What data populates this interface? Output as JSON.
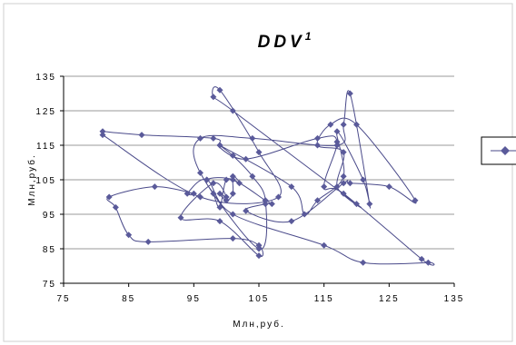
{
  "chart_data": {
    "type": "scatter",
    "title_main": "DDV",
    "title_superscript": "1",
    "xlabel": "Млн,руб.",
    "ylabel": "Млн,руб.",
    "xlim": [
      75,
      135
    ],
    "ylim": [
      75,
      135
    ],
    "xticks": [
      "75",
      "85",
      "95",
      "105",
      "115",
      "125",
      "135"
    ],
    "yticks": [
      "75",
      "85",
      "95",
      "105",
      "115",
      "125",
      "135"
    ],
    "grid": "horizontal",
    "legend_position": "right",
    "point_color": "#5a5a9a",
    "line_color": "#4a4a8a",
    "series": [
      {
        "marker": "diamond",
        "connected": "smoothed-line",
        "points": [
          [
            81,
            119
          ],
          [
            87,
            118
          ],
          [
            98,
            117
          ],
          [
            99,
            115
          ],
          [
            101,
            112
          ],
          [
            104,
            106
          ],
          [
            106,
            99
          ],
          [
            105,
            85
          ],
          [
            96,
            107
          ],
          [
            96,
            117
          ],
          [
            104,
            117
          ],
          [
            117,
            115
          ],
          [
            118,
            121
          ],
          [
            119,
            130
          ],
          [
            122,
            98
          ],
          [
            121,
            105
          ],
          [
            117,
            119
          ],
          [
            118,
            106
          ],
          [
            114,
            99
          ],
          [
            112,
            95
          ],
          [
            110,
            103
          ],
          [
            99,
            115
          ],
          [
            103,
            111
          ],
          [
            114,
            117
          ],
          [
            117,
            116
          ],
          [
            115,
            103
          ],
          [
            118,
            101
          ],
          [
            130,
            82
          ],
          [
            131,
            81
          ],
          [
            121,
            81
          ],
          [
            115,
            86
          ],
          [
            101,
            95
          ],
          [
            97,
            105
          ],
          [
            94,
            101
          ],
          [
            95,
            101
          ],
          [
            89,
            103
          ],
          [
            82,
            100
          ],
          [
            83,
            97
          ],
          [
            85,
            89
          ],
          [
            88,
            87
          ],
          [
            101,
            88
          ],
          [
            105,
            86
          ],
          [
            105,
            83
          ],
          [
            99,
            93
          ],
          [
            93,
            94
          ],
          [
            98,
            104
          ],
          [
            100,
            100
          ],
          [
            99,
            101
          ],
          [
            100,
            99
          ],
          [
            101,
            101
          ],
          [
            101,
            106
          ],
          [
            102,
            104
          ],
          [
            100,
            105
          ],
          [
            99,
            97
          ],
          [
            98,
            101
          ],
          [
            97,
            105
          ],
          [
            101,
            105
          ],
          [
            106,
            99
          ],
          [
            107,
            98
          ],
          [
            106,
            98
          ],
          [
            103,
            96
          ],
          [
            110,
            93
          ],
          [
            118,
            104
          ],
          [
            119,
            104
          ],
          [
            125,
            103
          ],
          [
            129,
            99
          ],
          [
            120,
            121
          ],
          [
            116,
            121
          ],
          [
            114,
            115
          ],
          [
            118,
            113
          ],
          [
            117,
            103
          ],
          [
            120,
            98
          ],
          [
            101,
            125
          ],
          [
            98,
            129
          ],
          [
            99,
            131
          ],
          [
            105,
            113
          ],
          [
            108,
            100
          ],
          [
            96,
            100
          ],
          [
            81,
            118
          ]
        ]
      }
    ]
  }
}
